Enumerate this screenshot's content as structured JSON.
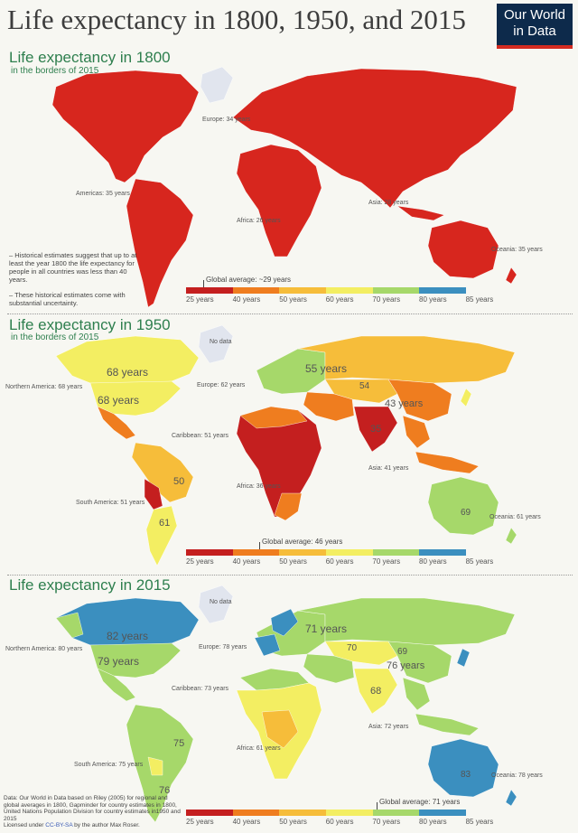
{
  "header": {
    "title": "Life expectancy in 1800, 1950, and 2015",
    "logo_line1": "Our World",
    "logo_line2": "in Data"
  },
  "legend_ticks": [
    "25 years",
    "40 years",
    "50 years",
    "60 years",
    "70 years",
    "80 years",
    "85 years"
  ],
  "legend_colors": [
    "#c41f1f",
    "#ef7d1f",
    "#f6bd3a",
    "#f3ee62",
    "#a6d86a",
    "#3b8fbf"
  ],
  "panels": {
    "p1800": {
      "title": "Life expectancy in 1800",
      "subtitle": "in the borders of 2015",
      "global_avg": "Global average: ~29 years",
      "region_labels": {
        "europe": "Europe: 34 years",
        "americas": "Americas: 35 years",
        "africa": "Africa: 26 years",
        "asia": "Asia: 28 years",
        "oceania": "Oceania: 35 years"
      },
      "notes": [
        "– Historical estimates suggest that up to at least the year 1800 the life expectancy for people in all countries was less than 40 years.",
        "– These historical estimates come with substantial uncertainty."
      ]
    },
    "p1950": {
      "title": "Life expectancy in 1950",
      "subtitle": "in the borders of 2015",
      "global_avg": "Global average: 46 years",
      "no_data": "No data",
      "region_labels": {
        "namerica": "Northern America: 68 years",
        "europe": "Europe: 62 years",
        "caribbean": "Caribbean: 51 years",
        "samerica": "South America: 51 years",
        "africa": "Africa: 36 years",
        "asia": "Asia: 41 years",
        "oceania": "Oceania: 61 years"
      },
      "values": {
        "canada": "68 years",
        "usa": "68 years",
        "russia": "55 years",
        "china": "43 years",
        "india": "35",
        "brazil": "50",
        "australia": "69",
        "argentina": "61",
        "kazakh": "54"
      }
    },
    "p2015": {
      "title": "Life expectancy in 2015",
      "global_avg": "Global average: 71 years",
      "no_data": "No data",
      "region_labels": {
        "namerica": "Northern America: 80 years",
        "europe": "Europe: 78 years",
        "caribbean": "Caribbean: 73 years",
        "samerica": "South America: 75 years",
        "africa": "Africa: 61 years",
        "asia": "Asia: 72 years",
        "oceania": "Oceania: 78 years"
      },
      "values": {
        "canada": "82 years",
        "usa": "79 years",
        "russia": "71 years",
        "china": "76 years",
        "india": "68",
        "brazil": "75",
        "australia": "83",
        "argentina": "76",
        "kazakh": "70",
        "mongolia": "69"
      }
    }
  },
  "source": {
    "text": "Data: Our World in Data based on Riley (2005) for regional and global averages in 1800, Gapminder for country estimates in 1800, United Nations Population Division for country estimates in1950 and 2015",
    "license_prefix": "Licensed under ",
    "license_link": "CC-BY-SA",
    "license_suffix": " by the author Max Roser."
  }
}
